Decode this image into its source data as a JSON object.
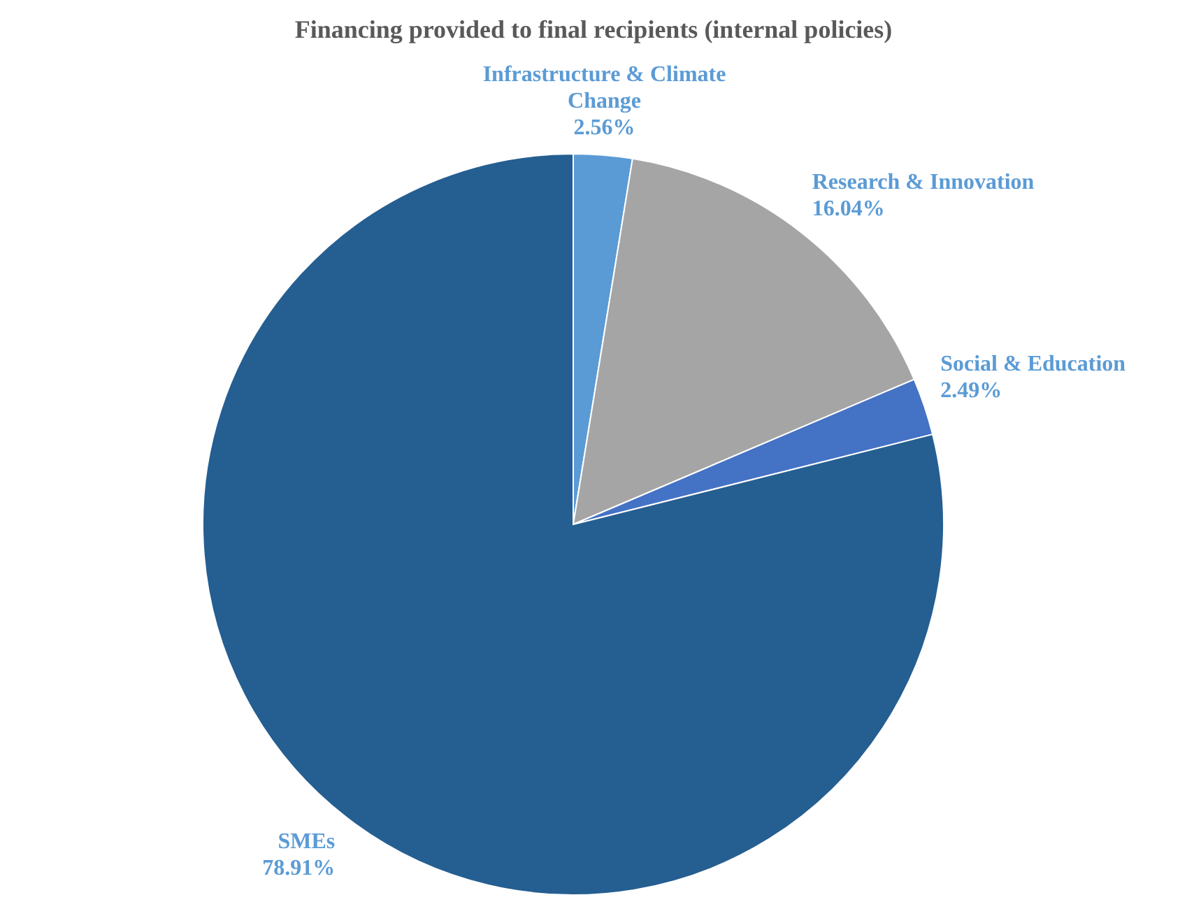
{
  "chart_data": {
    "type": "pie",
    "title": "Financing provided to final recipients (internal policies)",
    "categories": [
      "Infrastructure & Climate Change",
      "Research & Innovation",
      "Social & Education",
      "SMEs"
    ],
    "values": [
      2.56,
      16.04,
      2.49,
      78.91
    ],
    "colors": [
      "#5b9bd5",
      "#a5a5a5",
      "#4472c4",
      "#255e91"
    ],
    "value_labels": [
      "2.56%",
      "16.04%",
      "2.49%",
      "78.91%"
    ],
    "legend": false
  }
}
